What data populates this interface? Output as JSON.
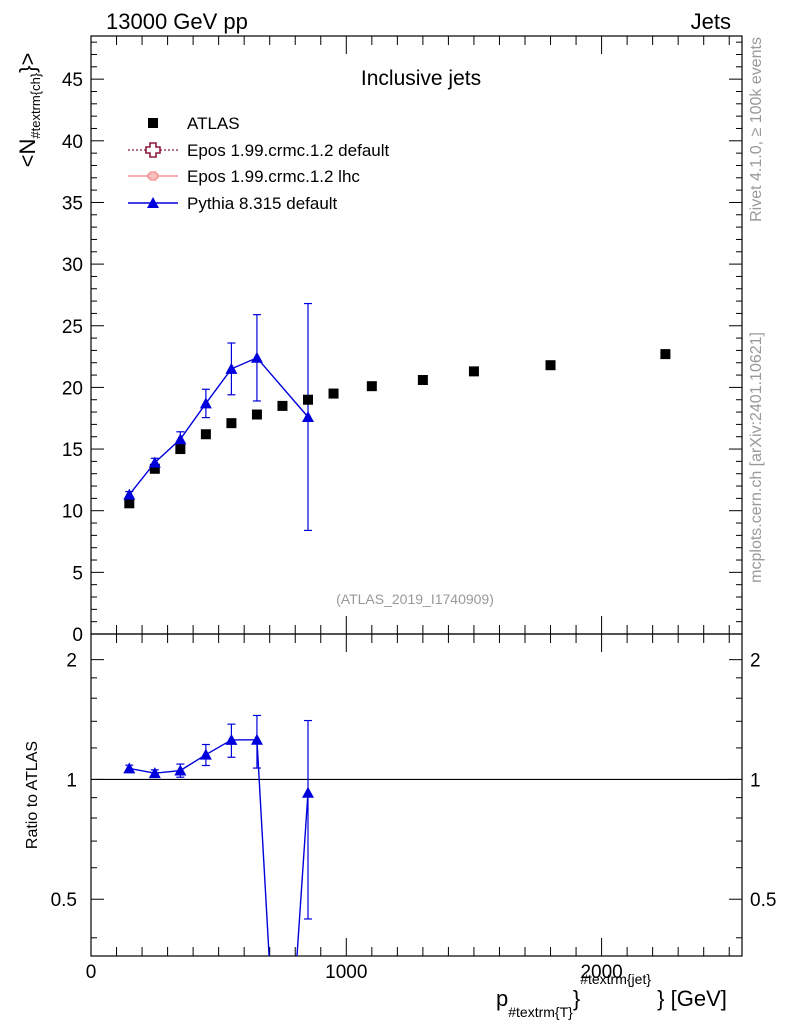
{
  "header": {
    "left": "13000 GeV pp",
    "right": "Jets"
  },
  "title": "Inclusive jets",
  "analysis_tag": "(ATLAS_2019_I1740909)",
  "side_labels": {
    "rivet": "Rivet 4.1.0, ≥ 100k events",
    "mcplots": "mcplots.cern.ch [arXiv:2401.10621]"
  },
  "colors": {
    "data": "#000000",
    "epos_default": "#8b1a3a",
    "epos_lhc": "#f08080",
    "pythia": "#0000dd"
  },
  "chart_data": [
    {
      "type": "scatter",
      "panel": "main",
      "ylabel": "<N_{#textrm{ch}}>",
      "xlim": [
        0,
        2550
      ],
      "ylim": [
        0,
        48.5
      ],
      "yticks": [
        "0",
        "5",
        "10",
        "15",
        "20",
        "25",
        "30",
        "35",
        "40",
        "45"
      ],
      "legend_position": "top-left",
      "legend": [
        {
          "label": "ATLAS",
          "marker": "square"
        },
        {
          "label": "Epos 1.99.crmc.1.2 default",
          "marker": "open-cross"
        },
        {
          "label": "Epos 1.99.crmc.1.2 lhc",
          "marker": "small-cross"
        },
        {
          "label": "Pythia 8.315 default",
          "marker": "triangle"
        }
      ],
      "series": [
        {
          "name": "ATLAS",
          "x": [
            150,
            250,
            350,
            450,
            550,
            650,
            750,
            850,
            950,
            1100,
            1300,
            1500,
            1800,
            2250
          ],
          "y": [
            10.6,
            13.4,
            15.0,
            16.2,
            17.1,
            17.8,
            18.5,
            19.0,
            19.5,
            20.1,
            20.6,
            21.3,
            21.8,
            22.7
          ]
        },
        {
          "name": "Pythia 8.315 default",
          "x": [
            150,
            250,
            350,
            450,
            550,
            650,
            850
          ],
          "y": [
            11.3,
            13.9,
            15.8,
            18.7,
            21.5,
            22.4,
            17.6
          ],
          "yerr": [
            0.25,
            0.35,
            0.6,
            1.15,
            2.1,
            3.5,
            9.2
          ]
        }
      ]
    },
    {
      "type": "line",
      "panel": "ratio",
      "ylabel": "Ratio to ATLAS",
      "xlabel": "p_{#textrm{T}}^{#textrm{jet}} [GeV]",
      "xlim": [
        0,
        2550
      ],
      "ylim": [
        0.36,
        2.32
      ],
      "log_y": true,
      "yticks": [
        "0.5",
        "1",
        "2"
      ],
      "xticks": [
        "0",
        "1000",
        "2000"
      ],
      "reference_line": 1,
      "series": [
        {
          "name": "Pythia 8.315 default",
          "x": [
            150,
            250,
            350,
            450,
            550,
            650,
            850
          ],
          "y": [
            1.066,
            1.037,
            1.053,
            1.154,
            1.257,
            1.258,
            0.926
          ],
          "yerr": [
            0.02,
            0.02,
            0.04,
            0.07,
            0.12,
            0.19,
            0.48
          ]
        }
      ],
      "offscale_segments": [
        {
          "x": [
            650,
            720,
            780,
            850
          ],
          "y": [
            1.258,
            0.2,
            0.2,
            0.926
          ]
        }
      ]
    }
  ]
}
